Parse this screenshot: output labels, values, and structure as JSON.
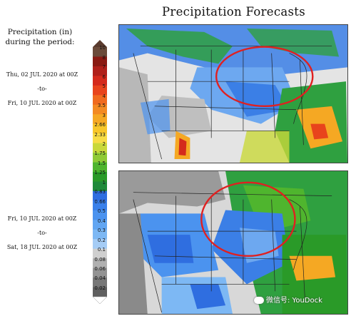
{
  "title": "Precipitation Forecasts",
  "legend": {
    "label_line1": "Precipitation (in)",
    "label_line2": "during the period:",
    "ticks": [
      "10",
      "8",
      "7",
      "6",
      "5",
      "4",
      "3.5",
      "3",
      "2.66",
      "2.33",
      "2",
      "1.75",
      "1.5",
      "1.25",
      "1",
      "0.83",
      "0.66",
      "0.5",
      "0.4",
      "0.3",
      "0.2",
      "0.1",
      "0.08",
      "0.06",
      "0.04",
      "0.02"
    ],
    "colors": [
      "#6b4b3a",
      "#8a1a12",
      "#b0201a",
      "#d42a1c",
      "#e8441c",
      "#f06a1e",
      "#f38a22",
      "#f5a823",
      "#f7c62a",
      "#f7dc46",
      "#c9d83a",
      "#8fca35",
      "#4fb52e",
      "#2a9a28",
      "#1f8a3a",
      "#2f6ee0",
      "#3a80ea",
      "#4b93ef",
      "#62a6f2",
      "#7db8f4",
      "#a5ccf5",
      "#cfcfcf",
      "#b0b0b0",
      "#939393",
      "#777777",
      "#5f5f5f"
    ]
  },
  "periods": [
    {
      "start": "Thu, 02 JUL 2020 at 00Z",
      "sep": "-to-",
      "end": "Fri, 10 JUL 2020 at 00Z"
    },
    {
      "start": "Fri, 10 JUL 2020 at 00Z",
      "sep": "-to-",
      "end": "Sat, 18 JUL 2020 at 00Z"
    }
  ],
  "watermark": "微信号: YouDock",
  "highlight_color": "#e02020"
}
